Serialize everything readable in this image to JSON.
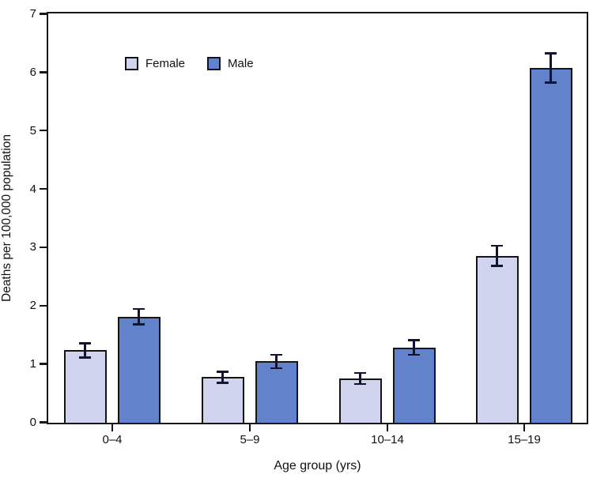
{
  "chart_data": {
    "type": "bar",
    "title": "",
    "xlabel": "Age group (yrs)",
    "ylabel": "Deaths per 100,000 population",
    "categories": [
      "0–4",
      "5–9",
      "10–14",
      "15–19"
    ],
    "series": [
      {
        "name": "Female",
        "color": "#d0d4ee",
        "values": [
          1.24,
          0.78,
          0.76,
          2.86
        ],
        "errors": [
          0.14,
          0.11,
          0.11,
          0.19
        ]
      },
      {
        "name": "Male",
        "color": "#6282cc",
        "values": [
          1.82,
          1.05,
          1.29,
          6.08
        ],
        "errors": [
          0.15,
          0.13,
          0.14,
          0.27
        ]
      }
    ],
    "ylim": [
      0,
      7
    ],
    "yticks": [
      0,
      1,
      2,
      3,
      4,
      5,
      6,
      7
    ],
    "grid": false,
    "error_bars": true,
    "legend_position": "upper-left-inside",
    "bar_border_color": "#141414",
    "error_bar_color": "#14142e",
    "axis_color": "#161616",
    "background_color": "#ffffff"
  }
}
